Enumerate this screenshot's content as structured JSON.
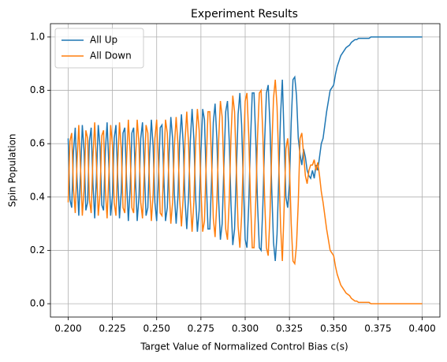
{
  "chart_data": {
    "type": "line",
    "title": "Experiment Results",
    "xlabel": "Target Value of Normalized Control Bias c(s)",
    "ylabel": "Spin Population",
    "xlim": [
      0.19,
      0.41
    ],
    "ylim": [
      -0.05,
      1.05
    ],
    "xticks": [
      {
        "value": 0.2,
        "label": "0.200"
      },
      0.225,
      {
        "value": 0.25,
        "label": "0.250"
      },
      0.275,
      {
        "value": 0.3,
        "label": "0.300"
      },
      0.325,
      {
        "value": 0.35,
        "label": "0.350"
      },
      0.375,
      {
        "value": 0.4,
        "label": "0.400"
      }
    ],
    "yticks": [
      {
        "value": 0,
        "label": "0.0"
      },
      0.2,
      0.4,
      0.6,
      0.8,
      {
        "value": 1,
        "label": "1.0"
      }
    ],
    "grid": true,
    "legend": "upper left",
    "x": [
      0.2,
      0.201,
      0.202,
      0.203,
      0.204,
      0.205,
      0.206,
      0.207,
      0.208,
      0.209,
      0.21,
      0.211,
      0.212,
      0.213,
      0.214,
      0.215,
      0.216,
      0.217,
      0.218,
      0.219,
      0.22,
      0.221,
      0.222,
      0.223,
      0.224,
      0.225,
      0.226,
      0.227,
      0.228,
      0.229,
      0.23,
      0.231,
      0.232,
      0.233,
      0.234,
      0.235,
      0.236,
      0.237,
      0.238,
      0.239,
      0.24,
      0.241,
      0.242,
      0.243,
      0.244,
      0.245,
      0.246,
      0.247,
      0.248,
      0.249,
      0.25,
      0.251,
      0.252,
      0.253,
      0.254,
      0.255,
      0.256,
      0.257,
      0.258,
      0.259,
      0.26,
      0.261,
      0.262,
      0.263,
      0.264,
      0.265,
      0.266,
      0.267,
      0.268,
      0.269,
      0.27,
      0.271,
      0.272,
      0.273,
      0.274,
      0.275,
      0.276,
      0.277,
      0.278,
      0.279,
      0.28,
      0.281,
      0.282,
      0.283,
      0.284,
      0.285,
      0.286,
      0.287,
      0.288,
      0.289,
      0.29,
      0.291,
      0.292,
      0.293,
      0.294,
      0.295,
      0.296,
      0.297,
      0.298,
      0.299,
      0.3,
      0.301,
      0.302,
      0.303,
      0.304,
      0.305,
      0.306,
      0.307,
      0.308,
      0.309,
      0.31,
      0.311,
      0.312,
      0.313,
      0.314,
      0.315,
      0.316,
      0.317,
      0.318,
      0.319,
      0.32,
      0.321,
      0.322,
      0.323,
      0.324,
      0.325,
      0.326,
      0.327,
      0.328,
      0.329,
      0.33,
      0.331,
      0.332,
      0.333,
      0.334,
      0.335,
      0.336,
      0.337,
      0.338,
      0.339,
      0.34,
      0.341,
      0.342,
      0.343,
      0.344,
      0.345,
      0.346,
      0.347,
      0.348,
      0.349,
      0.35,
      0.351,
      0.352,
      0.353,
      0.354,
      0.355,
      0.356,
      0.357,
      0.358,
      0.359,
      0.36,
      0.361,
      0.362,
      0.363,
      0.364,
      0.365,
      0.366,
      0.367,
      0.368,
      0.369,
      0.37,
      0.371,
      0.372,
      0.373,
      0.374,
      0.375,
      0.376,
      0.377,
      0.378,
      0.379,
      0.38,
      0.381,
      0.382,
      0.383,
      0.384,
      0.385,
      0.386,
      0.387,
      0.388,
      0.389,
      0.39,
      0.391,
      0.392,
      0.393,
      0.394,
      0.395,
      0.396,
      0.397,
      0.398,
      0.399,
      0.4
    ],
    "series": [
      {
        "name": "All Up",
        "color": "#1f77b4",
        "values": [
          0.62,
          0.39,
          0.36,
          0.57,
          0.66,
          0.47,
          0.33,
          0.49,
          0.67,
          0.57,
          0.35,
          0.38,
          0.61,
          0.66,
          0.45,
          0.32,
          0.48,
          0.67,
          0.59,
          0.37,
          0.35,
          0.57,
          0.68,
          0.52,
          0.33,
          0.4,
          0.62,
          0.67,
          0.47,
          0.32,
          0.42,
          0.64,
          0.66,
          0.46,
          0.31,
          0.43,
          0.64,
          0.66,
          0.47,
          0.31,
          0.4,
          0.62,
          0.68,
          0.51,
          0.33,
          0.36,
          0.56,
          0.69,
          0.59,
          0.38,
          0.31,
          0.47,
          0.66,
          0.67,
          0.48,
          0.31,
          0.36,
          0.56,
          0.7,
          0.62,
          0.41,
          0.3,
          0.4,
          0.61,
          0.71,
          0.6,
          0.39,
          0.28,
          0.4,
          0.61,
          0.73,
          0.62,
          0.4,
          0.27,
          0.35,
          0.57,
          0.73,
          0.69,
          0.47,
          0.28,
          0.28,
          0.46,
          0.68,
          0.75,
          0.62,
          0.39,
          0.24,
          0.3,
          0.52,
          0.72,
          0.76,
          0.61,
          0.37,
          0.22,
          0.28,
          0.49,
          0.71,
          0.79,
          0.67,
          0.44,
          0.24,
          0.21,
          0.37,
          0.61,
          0.79,
          0.79,
          0.61,
          0.37,
          0.21,
          0.2,
          0.37,
          0.61,
          0.79,
          0.82,
          0.67,
          0.43,
          0.23,
          0.16,
          0.26,
          0.48,
          0.71,
          0.84,
          0.62,
          0.4,
          0.36,
          0.45,
          0.68,
          0.84,
          0.85,
          0.78,
          0.62,
          0.56,
          0.52,
          0.58,
          0.55,
          0.5,
          0.48,
          0.47,
          0.5,
          0.47,
          0.52,
          0.5,
          0.55,
          0.6,
          0.62,
          0.67,
          0.72,
          0.76,
          0.8,
          0.81,
          0.82,
          0.86,
          0.89,
          0.91,
          0.93,
          0.94,
          0.95,
          0.96,
          0.965,
          0.97,
          0.98,
          0.985,
          0.99,
          0.99,
          0.995,
          0.995,
          0.995,
          0.995,
          0.995,
          0.995,
          0.995,
          1,
          1,
          1,
          1,
          1,
          1,
          1,
          1,
          1,
          1,
          1,
          1,
          1,
          1,
          1,
          1,
          1,
          1,
          1,
          1,
          1,
          1,
          1,
          1,
          1,
          1,
          1,
          1,
          1,
          1
        ]
      },
      {
        "name": "All Down",
        "color": "#ff7f0e",
        "values": [
          0.38,
          0.61,
          0.64,
          0.43,
          0.34,
          0.53,
          0.67,
          0.51,
          0.33,
          0.43,
          0.65,
          0.62,
          0.39,
          0.34,
          0.55,
          0.68,
          0.52,
          0.33,
          0.41,
          0.63,
          0.65,
          0.43,
          0.32,
          0.48,
          0.67,
          0.6,
          0.38,
          0.33,
          0.53,
          0.68,
          0.58,
          0.36,
          0.34,
          0.54,
          0.69,
          0.57,
          0.36,
          0.34,
          0.53,
          0.69,
          0.6,
          0.38,
          0.32,
          0.49,
          0.67,
          0.64,
          0.44,
          0.31,
          0.41,
          0.62,
          0.69,
          0.53,
          0.34,
          0.33,
          0.52,
          0.69,
          0.64,
          0.44,
          0.3,
          0.38,
          0.59,
          0.7,
          0.6,
          0.39,
          0.29,
          0.4,
          0.61,
          0.72,
          0.6,
          0.39,
          0.27,
          0.38,
          0.6,
          0.73,
          0.65,
          0.43,
          0.27,
          0.31,
          0.53,
          0.72,
          0.72,
          0.54,
          0.32,
          0.25,
          0.38,
          0.61,
          0.76,
          0.7,
          0.48,
          0.28,
          0.24,
          0.39,
          0.63,
          0.78,
          0.72,
          0.51,
          0.29,
          0.21,
          0.33,
          0.56,
          0.76,
          0.79,
          0.63,
          0.39,
          0.21,
          0.21,
          0.39,
          0.63,
          0.79,
          0.8,
          0.63,
          0.39,
          0.21,
          0.18,
          0.33,
          0.57,
          0.77,
          0.84,
          0.74,
          0.52,
          0.29,
          0.16,
          0.36,
          0.58,
          0.62,
          0.52,
          0.3,
          0.16,
          0.15,
          0.22,
          0.38,
          0.62,
          0.64,
          0.56,
          0.48,
          0.45,
          0.5,
          0.52,
          0.52,
          0.54,
          0.5,
          0.53,
          0.48,
          0.42,
          0.38,
          0.33,
          0.28,
          0.24,
          0.2,
          0.19,
          0.18,
          0.14,
          0.11,
          0.09,
          0.07,
          0.06,
          0.05,
          0.04,
          0.035,
          0.03,
          0.02,
          0.015,
          0.01,
          0.01,
          0.005,
          0.005,
          0.005,
          0.005,
          0.005,
          0.005,
          0.005,
          0,
          0,
          0,
          0,
          0,
          0,
          0,
          0,
          0,
          0,
          0,
          0,
          0,
          0,
          0,
          0,
          0,
          0,
          0,
          0,
          0,
          0,
          0,
          0,
          0,
          0,
          0,
          0,
          0,
          0
        ]
      }
    ]
  }
}
